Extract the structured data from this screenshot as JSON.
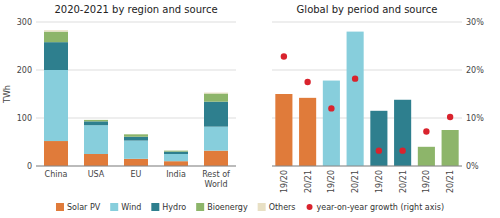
{
  "chart_data": [
    {
      "type": "bar",
      "title": "2020-2021 by region and source",
      "y_label": "TWh",
      "categories": [
        "China",
        "USA",
        "EU",
        "India",
        "Rest of\nWorld"
      ],
      "stacked": true,
      "grid": true,
      "legend": "bottom",
      "ylim": [
        0,
        300
      ],
      "yticks": [
        0,
        100,
        200,
        300
      ],
      "series": [
        {
          "name": "Solar PV",
          "color": "#e07b3a",
          "values": [
            52,
            25,
            15,
            10,
            32
          ]
        },
        {
          "name": "Wind",
          "color": "#87cedc",
          "values": [
            148,
            60,
            38,
            15,
            50
          ]
        },
        {
          "name": "Hydro",
          "color": "#2e7f8e",
          "values": [
            58,
            8,
            8,
            5,
            52
          ]
        },
        {
          "name": "Bioenergy",
          "color": "#8db56a",
          "values": [
            22,
            3,
            5,
            2,
            17
          ]
        },
        {
          "name": "Others",
          "color": "#e8e0c4",
          "values": [
            3,
            0,
            0,
            0,
            2
          ]
        }
      ]
    },
    {
      "type": "bar",
      "title": "Global by period and source",
      "categories": [
        "19/20",
        "20/21",
        "19/20",
        "20/21",
        "19/20",
        "20/21",
        "19/20",
        "20/21"
      ],
      "grid": true,
      "legend": "bottom",
      "tick_labels": "x",
      "ylim": [
        0,
        300
      ],
      "yticks": [
        0,
        100,
        200,
        300
      ],
      "y2lim": [
        0,
        0.3
      ],
      "y2ticks": [
        {
          "value": 0.0,
          "label": "0%"
        },
        {
          "value": 0.1,
          "label": "10%"
        },
        {
          "value": 0.2,
          "label": "20%"
        },
        {
          "value": 0.3,
          "label": "30%"
        }
      ],
      "series": [
        {
          "type": "bar",
          "values": [
            150,
            142,
            178,
            280,
            115,
            138,
            40,
            75
          ],
          "colors": [
            "#e07b3a",
            "#e07b3a",
            "#87cedc",
            "#87cedc",
            "#2e7f8e",
            "#2e7f8e",
            "#8db56a",
            "#8db56a"
          ]
        },
        {
          "type": "scatter",
          "name": "year-on-year growth (right axis)",
          "axis": "y2",
          "color": "#d9232d",
          "marker": "circle",
          "values": [
            0.228,
            0.175,
            0.12,
            0.182,
            0.032,
            0.032,
            0.072,
            0.102
          ]
        }
      ]
    }
  ]
}
